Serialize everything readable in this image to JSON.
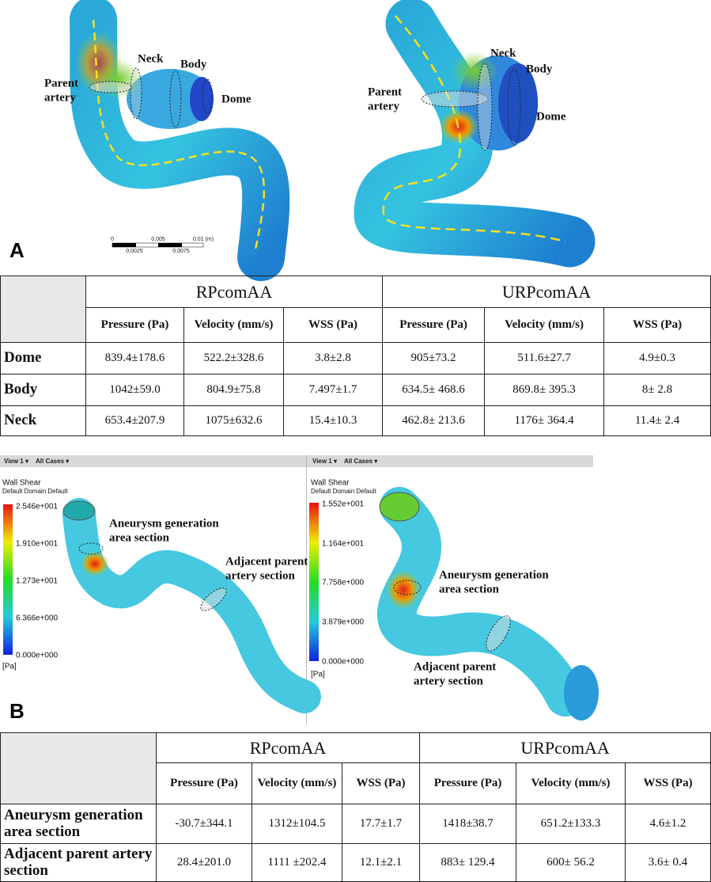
{
  "panel_a": {
    "label": "A",
    "left": {
      "parent_artery": [
        "Parent",
        "artery"
      ],
      "neck": "Neck",
      "body": "Body",
      "dome": "Dome",
      "scale": [
        "0",
        "0.005",
        "0.01 (m)",
        "0.0025",
        "0.0075"
      ]
    },
    "right": {
      "parent_artery": [
        "Parent",
        "artery"
      ],
      "neck": "Neck",
      "body": "Body",
      "dome": "Dome"
    }
  },
  "table_a": {
    "groups": [
      "RPcomAA",
      "URPcomAA"
    ],
    "columns": [
      "Pressure (Pa)",
      "Velocity (mm/s)",
      "WSS (Pa)",
      "Pressure (Pa)",
      "Velocity (mm/s)",
      "WSS (Pa)"
    ],
    "rows": [
      {
        "label": "Dome",
        "cells": [
          "839.4±178.6",
          "522.2±328.6",
          "3.8±2.8",
          "905±73.2",
          "511.6±27.7",
          "4.9±0.3"
        ]
      },
      {
        "label": "Body",
        "cells": [
          "1042±59.0",
          "804.9±75.8",
          "7.497±1.7",
          "634.5± 468.6",
          "869.8± 395.3",
          "8± 2.8"
        ]
      },
      {
        "label": "Neck",
        "cells": [
          "653.4±207.9",
          "1075±632.6",
          "15.4±10.3",
          "462.8± 213.6",
          "1176± 364.4",
          "11.4± 2.4"
        ]
      }
    ]
  },
  "panel_b": {
    "label": "B",
    "views": [
      {
        "toolbar": [
          "View 1 ▾",
          "All Cases ▾"
        ],
        "legend_title": "Wall Shear",
        "legend_subtitle": "Default Domain Default",
        "legend_ticks": [
          "2.546e+001",
          "1.910e+001",
          "1.273e+001",
          "6.366e+000",
          "0.000e+000"
        ],
        "unit": "[Pa]",
        "annotations": [
          [
            "Aneurysm generation",
            "area section"
          ],
          [
            "Adjacent parent",
            "artery section"
          ]
        ]
      },
      {
        "toolbar": [
          "View 1 ▾",
          "All Cases ▾"
        ],
        "legend_title": "Wall Shear",
        "legend_subtitle": "Default Domain Default",
        "legend_ticks": [
          "1.552e+001",
          "1.164e+001",
          "7.758e+000",
          "3.879e+000",
          "0.000e+000"
        ],
        "unit": "[Pa]",
        "annotations": [
          [
            "Aneurysm generation",
            "area section"
          ],
          [
            "Adjacent parent",
            "artery section"
          ]
        ]
      }
    ]
  },
  "table_b": {
    "groups": [
      "RPcomAA",
      "URPcomAA"
    ],
    "columns": [
      "Pressure (Pa)",
      "Velocity (mm/s)",
      "WSS (Pa)",
      "Pressure (Pa)",
      "Velocity (mm/s)",
      "WSS (Pa)"
    ],
    "rows": [
      {
        "label": "Aneurysm generation area section",
        "cells": [
          "-30.7±344.1",
          "1312±104.5",
          "17.7±1.7",
          "1418±38.7",
          "651.2±133.3",
          "4.6±1.2"
        ]
      },
      {
        "label": "Adjacent parent artery  section",
        "cells": [
          "28.4±201.0",
          "1111 ±202.4",
          "12.1±2.1",
          "883± 129.4",
          "600± 56.2",
          "3.6± 0.4"
        ]
      }
    ]
  }
}
